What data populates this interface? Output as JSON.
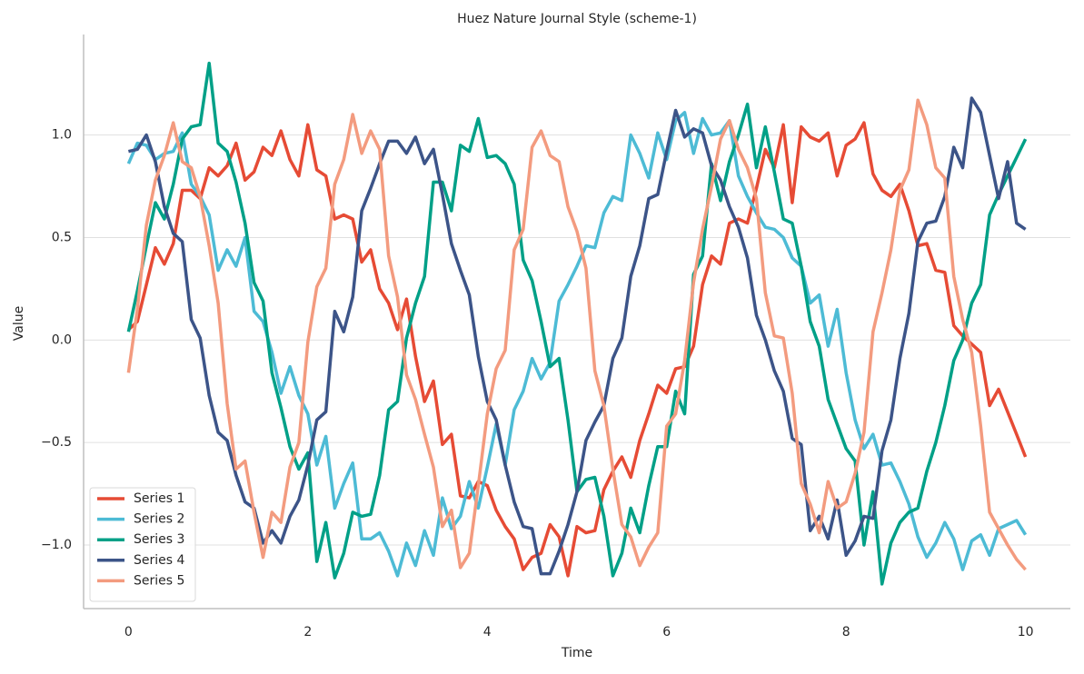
{
  "chart_data": {
    "type": "line",
    "title": "Huez Nature Journal Style (scheme-1)",
    "x_label": "Time",
    "y_label": "Value",
    "x": [
      0,
      0.1,
      0.2,
      0.3,
      0.4,
      0.5,
      0.6,
      0.7,
      0.8,
      0.9,
      1,
      1.1,
      1.2,
      1.3,
      1.4,
      1.5,
      1.6,
      1.7,
      1.8,
      1.9,
      2,
      2.1,
      2.2,
      2.3,
      2.4,
      2.5,
      2.6,
      2.7,
      2.8,
      2.9,
      3,
      3.1,
      3.2,
      3.3,
      3.4,
      3.5,
      3.6,
      3.7,
      3.8,
      3.9,
      4,
      4.1,
      4.2,
      4.3,
      4.4,
      4.5,
      4.6,
      4.7,
      4.8,
      4.9,
      5,
      5.1,
      5.2,
      5.3,
      5.4,
      5.5,
      5.6,
      5.7,
      5.8,
      5.9,
      6,
      6.1,
      6.2,
      6.3,
      6.4,
      6.5,
      6.6,
      6.7,
      6.8,
      6.9,
      7,
      7.1,
      7.2,
      7.3,
      7.4,
      7.5,
      7.6,
      7.7,
      7.8,
      7.9,
      8,
      8.1,
      8.2,
      8.3,
      8.4,
      8.5,
      8.6,
      8.7,
      8.8,
      8.9,
      9,
      9.1,
      9.2,
      9.3,
      9.4,
      9.5,
      9.6,
      9.7,
      9.8,
      9.9,
      10
    ],
    "series": [
      {
        "name": "Series 1",
        "color": "#e64b35",
        "values": [
          0.05,
          0.09,
          0.27,
          0.45,
          0.37,
          0.47,
          0.73,
          0.73,
          0.69,
          0.84,
          0.8,
          0.85,
          0.96,
          0.78,
          0.82,
          0.94,
          0.9,
          1.02,
          0.88,
          0.8,
          1.05,
          0.83,
          0.8,
          0.59,
          0.61,
          0.59,
          0.38,
          0.44,
          0.25,
          0.18,
          0.05,
          0.2,
          -0.08,
          -0.3,
          -0.2,
          -0.51,
          -0.46,
          -0.76,
          -0.77,
          -0.69,
          -0.71,
          -0.83,
          -0.91,
          -0.97,
          -1.12,
          -1.06,
          -1.04,
          -0.9,
          -0.96,
          -1.15,
          -0.91,
          -0.94,
          -0.93,
          -0.73,
          -0.64,
          -0.57,
          -0.67,
          -0.49,
          -0.36,
          -0.22,
          -0.26,
          -0.14,
          -0.13,
          -0.03,
          0.27,
          0.41,
          0.37,
          0.57,
          0.59,
          0.57,
          0.74,
          0.93,
          0.84,
          1.05,
          0.67,
          1.04,
          0.99,
          0.97,
          1.01,
          0.8,
          0.95,
          0.98,
          1.06,
          0.81,
          0.73,
          0.7,
          0.76,
          0.63,
          0.46,
          0.47,
          0.34,
          0.33,
          0.07,
          0.02,
          -0.02,
          -0.06,
          -0.32,
          -0.24,
          -0.35,
          -0.46,
          -0.57
        ]
      },
      {
        "name": "Series 2",
        "color": "#4dbbd5",
        "values": [
          0.86,
          0.96,
          0.95,
          0.88,
          0.91,
          0.92,
          1.01,
          0.76,
          0.7,
          0.61,
          0.34,
          0.44,
          0.36,
          0.5,
          0.14,
          0.09,
          -0.06,
          -0.26,
          -0.13,
          -0.27,
          -0.36,
          -0.61,
          -0.47,
          -0.82,
          -0.7,
          -0.6,
          -0.97,
          -0.97,
          -0.94,
          -1.03,
          -1.15,
          -0.99,
          -1.1,
          -0.93,
          -1.05,
          -0.77,
          -0.92,
          -0.86,
          -0.69,
          -0.82,
          -0.62,
          -0.41,
          -0.61,
          -0.34,
          -0.25,
          -0.09,
          -0.19,
          -0.11,
          0.19,
          0.27,
          0.36,
          0.46,
          0.45,
          0.62,
          0.7,
          0.68,
          1.0,
          0.91,
          0.79,
          1.01,
          0.88,
          1.07,
          1.11,
          0.91,
          1.08,
          1.0,
          1.01,
          1.07,
          0.8,
          0.7,
          0.62,
          0.55,
          0.54,
          0.5,
          0.4,
          0.36,
          0.18,
          0.22,
          -0.03,
          0.15,
          -0.16,
          -0.39,
          -0.53,
          -0.46,
          -0.61,
          -0.6,
          -0.69,
          -0.8,
          -0.96,
          -1.06,
          -0.99,
          -0.89,
          -0.97,
          -1.12,
          -0.98,
          -0.95,
          -1.05,
          -0.92,
          -0.9,
          -0.88,
          -0.95
        ]
      },
      {
        "name": "Series 3",
        "color": "#00a087",
        "values": [
          0.04,
          0.24,
          0.46,
          0.67,
          0.59,
          0.76,
          0.98,
          1.04,
          1.05,
          1.35,
          0.96,
          0.92,
          0.77,
          0.57,
          0.28,
          0.19,
          -0.16,
          -0.33,
          -0.52,
          -0.63,
          -0.55,
          -1.08,
          -0.89,
          -1.16,
          -1.04,
          -0.84,
          -0.86,
          -0.85,
          -0.66,
          -0.34,
          -0.3,
          0.01,
          0.18,
          0.31,
          0.77,
          0.77,
          0.63,
          0.95,
          0.92,
          1.08,
          0.89,
          0.9,
          0.86,
          0.76,
          0.39,
          0.29,
          0.09,
          -0.13,
          -0.09,
          -0.39,
          -0.74,
          -0.68,
          -0.67,
          -0.86,
          -1.15,
          -1.04,
          -0.82,
          -0.94,
          -0.71,
          -0.52,
          -0.52,
          -0.25,
          -0.36,
          0.32,
          0.41,
          0.86,
          0.68,
          0.87,
          1.0,
          1.15,
          0.84,
          1.04,
          0.82,
          0.59,
          0.57,
          0.36,
          0.09,
          -0.03,
          -0.29,
          -0.41,
          -0.53,
          -0.59,
          -1.0,
          -0.74,
          -1.19,
          -0.99,
          -0.89,
          -0.84,
          -0.82,
          -0.64,
          -0.5,
          -0.32,
          -0.1,
          0.0,
          0.18,
          0.27,
          0.61,
          0.71,
          0.8,
          0.89,
          0.98
        ]
      },
      {
        "name": "Series 4",
        "color": "#3c5488",
        "values": [
          0.92,
          0.93,
          1.0,
          0.87,
          0.65,
          0.52,
          0.48,
          0.1,
          0.01,
          -0.27,
          -0.45,
          -0.49,
          -0.66,
          -0.79,
          -0.82,
          -0.99,
          -0.93,
          -0.99,
          -0.86,
          -0.78,
          -0.61,
          -0.39,
          -0.35,
          0.14,
          0.04,
          0.21,
          0.63,
          0.74,
          0.86,
          0.97,
          0.97,
          0.91,
          0.99,
          0.86,
          0.93,
          0.71,
          0.47,
          0.34,
          0.22,
          -0.08,
          -0.3,
          -0.39,
          -0.61,
          -0.79,
          -0.91,
          -0.92,
          -1.14,
          -1.14,
          -1.03,
          -0.9,
          -0.74,
          -0.49,
          -0.4,
          -0.32,
          -0.09,
          0.01,
          0.31,
          0.46,
          0.69,
          0.71,
          0.92,
          1.12,
          0.99,
          1.03,
          1.01,
          0.85,
          0.78,
          0.65,
          0.55,
          0.4,
          0.12,
          0.0,
          -0.15,
          -0.25,
          -0.48,
          -0.51,
          -0.93,
          -0.86,
          -0.97,
          -0.78,
          -1.05,
          -0.98,
          -0.86,
          -0.87,
          -0.54,
          -0.39,
          -0.09,
          0.13,
          0.48,
          0.57,
          0.58,
          0.7,
          0.94,
          0.84,
          1.18,
          1.11,
          0.9,
          0.69,
          0.87,
          0.57,
          0.54
        ]
      },
      {
        "name": "Series 5",
        "color": "#f39b7f",
        "values": [
          -0.16,
          0.15,
          0.56,
          0.78,
          0.9,
          1.06,
          0.87,
          0.84,
          0.7,
          0.46,
          0.18,
          -0.31,
          -0.63,
          -0.59,
          -0.84,
          -1.06,
          -0.84,
          -0.89,
          -0.62,
          -0.5,
          -0.01,
          0.26,
          0.35,
          0.76,
          0.88,
          1.1,
          0.91,
          1.02,
          0.93,
          0.41,
          0.21,
          -0.17,
          -0.29,
          -0.46,
          -0.62,
          -0.91,
          -0.83,
          -1.11,
          -1.04,
          -0.71,
          -0.36,
          -0.14,
          -0.05,
          0.44,
          0.54,
          0.94,
          1.02,
          0.9,
          0.87,
          0.65,
          0.53,
          0.35,
          -0.15,
          -0.32,
          -0.63,
          -0.9,
          -0.96,
          -1.1,
          -1.01,
          -0.94,
          -0.42,
          -0.36,
          -0.1,
          0.28,
          0.54,
          0.75,
          0.98,
          1.07,
          0.93,
          0.84,
          0.69,
          0.23,
          0.02,
          0.01,
          -0.26,
          -0.7,
          -0.8,
          -0.94,
          -0.69,
          -0.82,
          -0.79,
          -0.65,
          -0.45,
          0.04,
          0.23,
          0.44,
          0.73,
          0.83,
          1.17,
          1.05,
          0.84,
          0.79,
          0.31,
          0.1,
          -0.06,
          -0.42,
          -0.84,
          -0.92,
          -1.0,
          -1.07,
          -1.12
        ]
      }
    ],
    "xlim": [
      -0.5,
      10.5
    ],
    "ylim": [
      -1.31,
      1.49
    ],
    "xticks": [
      0,
      2,
      4,
      6,
      8,
      10
    ],
    "yticks": [
      {
        "value": -1,
        "label": "−1.0"
      },
      {
        "value": -0.5,
        "label": "−0.5"
      },
      {
        "value": 0,
        "label": "0.0"
      },
      {
        "value": 0.5,
        "label": "0.5"
      },
      {
        "value": 1,
        "label": "1.0"
      }
    ],
    "grid": true,
    "legend": "lower left"
  }
}
